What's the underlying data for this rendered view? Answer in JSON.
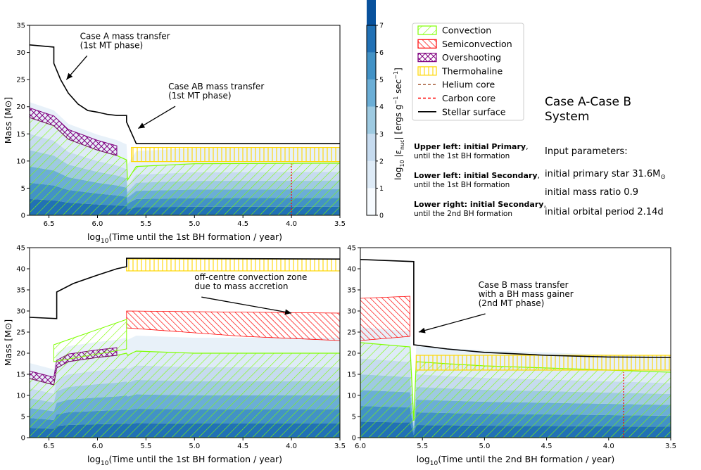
{
  "figure_title": "Case A-Case B System",
  "figure_title_lines": [
    "Case A-Case B",
    "System"
  ],
  "legend": {
    "entries": [
      {
        "label": "Convection",
        "kind": "hatch-convection",
        "color": "#7fff00"
      },
      {
        "label": "Semiconvection",
        "kind": "hatch-semi",
        "color": "#ff0000"
      },
      {
        "label": "Overshooting",
        "kind": "hatch-over",
        "color": "#800080"
      },
      {
        "label": "Thermohaline",
        "kind": "hatch-thermo",
        "color": "#ffd700"
      },
      {
        "label": "Helium core",
        "kind": "dash",
        "color": "#a0522d"
      },
      {
        "label": "Carbon core",
        "kind": "dash",
        "color": "#ff0000"
      },
      {
        "label": "Stellar surface",
        "kind": "line",
        "color": "#000000"
      }
    ]
  },
  "colorbar": {
    "label": "log10 |ε_nuc| [ergs g⁻¹ sec⁻¹]",
    "label_parts": {
      "pre": "log",
      "sub": "10",
      "mid": " |ε",
      "sub2": "nuc",
      "post": "| [ergs g",
      "sup": "−1",
      "post2": " sec",
      "sup2": "−1",
      "end": "]"
    },
    "ticks": [
      "0",
      "1",
      "2",
      "3",
      "4",
      "5",
      "6",
      "7"
    ],
    "colors": [
      "#f7fbff",
      "#deebf7",
      "#c6dbef",
      "#9ecae1",
      "#6baed6",
      "#4292c6",
      "#2171b5",
      "#08519c"
    ]
  },
  "notes": [
    {
      "bold": "Upper left: initial Primary",
      "tail": ",",
      "sub": "until the 1st BH formation"
    },
    {
      "bold": "Lower left: initial Secondary",
      "tail": ",",
      "sub": "until the 1st BH formation"
    },
    {
      "bold": "Lower right: initial Secondary",
      "tail": ",",
      "sub": "until the 2nd BH formation"
    }
  ],
  "input_parameters": {
    "heading": "Input parameters:",
    "primary": "initial primary star 31.6M",
    "primary_unit_sub": "⊙",
    "mass_ratio": "initial mass ratio 0.9",
    "period": "initial orbital period 2.14d"
  },
  "chart_data": [
    {
      "id": "upper-left",
      "type": "area",
      "xlabel": "log10(Time until the 1st BH formation / year)",
      "ylabel": "Mass [M⊙]",
      "xlim": [
        6.7,
        3.5
      ],
      "ylim": [
        0,
        35
      ],
      "xticks": [
        "6.5",
        "6.0",
        "5.5",
        "5.0",
        "4.5",
        "4.0",
        "3.5"
      ],
      "xtick_values": [
        6.5,
        6.0,
        5.5,
        5.0,
        4.5,
        4.0,
        3.5
      ],
      "yticks": [
        "0",
        "5",
        "10",
        "15",
        "20",
        "25",
        "30",
        "35"
      ],
      "ytick_values": [
        0,
        5,
        10,
        15,
        20,
        25,
        30,
        35
      ],
      "surface": {
        "x": [
          6.7,
          6.45,
          6.45,
          6.38,
          6.3,
          6.2,
          6.1,
          6.0,
          5.9,
          5.8,
          5.7,
          5.7,
          5.6,
          3.5
        ],
        "y": [
          31.4,
          31.0,
          28.0,
          25.0,
          22.5,
          20.5,
          19.3,
          19.0,
          18.6,
          18.4,
          18.4,
          17.2,
          13.2,
          13.2
        ]
      },
      "convective_core": {
        "x": [
          6.7,
          6.45,
          6.3,
          6.0,
          5.8,
          5.7,
          5.69,
          5.6,
          5.0,
          3.5
        ],
        "y": [
          18.0,
          16.5,
          14.0,
          12.0,
          11.0,
          10.2,
          6.5,
          9.0,
          9.5,
          9.6
        ]
      },
      "thermohaline": {
        "x0": 5.65,
        "x1": 3.5,
        "y0": 9.9,
        "y1": 12.5
      },
      "carbon_core_x": 4.0,
      "carbon_core_y": [
        0,
        9.5
      ],
      "annotations": [
        {
          "text": "Case A mass transfer",
          "text2": "(1st MT phase)",
          "tx": 6.18,
          "ty": 32.5,
          "ax": 6.32,
          "ay": 25.0
        },
        {
          "text": "Case AB mass transfer",
          "text2": "(1st MT phase)",
          "tx": 5.27,
          "ty": 23.2,
          "ax": 5.58,
          "ay": 16.0
        }
      ]
    },
    {
      "id": "lower-left",
      "type": "area",
      "xlabel": "log10(Time until the 1st BH formation / year)",
      "ylabel": "Mass [M⊙]",
      "xlim": [
        6.7,
        3.5
      ],
      "ylim": [
        0,
        45
      ],
      "xticks": [
        "6.5",
        "6.0",
        "5.5",
        "5.0",
        "4.5",
        "4.0",
        "3.5"
      ],
      "xtick_values": [
        6.5,
        6.0,
        5.5,
        5.0,
        4.5,
        4.0,
        3.5
      ],
      "yticks": [
        "0",
        "5",
        "10",
        "15",
        "20",
        "25",
        "30",
        "35",
        "40",
        "45"
      ],
      "ytick_values": [
        0,
        5,
        10,
        15,
        20,
        25,
        30,
        35,
        40,
        45
      ],
      "surface": {
        "x": [
          6.7,
          6.42,
          6.42,
          6.25,
          6.0,
          5.8,
          5.7,
          5.7,
          3.5
        ],
        "y": [
          28.5,
          28.2,
          34.5,
          36.5,
          38.5,
          40.0,
          40.5,
          42.5,
          42.3
        ]
      },
      "convective_core": {
        "x": [
          6.7,
          6.45,
          6.42,
          6.3,
          6.0,
          5.8,
          5.7,
          5.69,
          5.6,
          5.0,
          4.0,
          3.5
        ],
        "y": [
          14.0,
          12.5,
          16.5,
          18.0,
          19.0,
          19.5,
          20.0,
          19.5,
          20.5,
          20.0,
          20.0,
          20.0
        ]
      },
      "thermohaline": {
        "x0": 5.7,
        "x1": 3.5,
        "y0": 39.5,
        "y1": 42.3
      },
      "annotations": [
        {
          "text": "off-centre convection zone",
          "text2": "due to mass accretion",
          "tx": 5.0,
          "ty": 37.3,
          "ax": 4.0,
          "ay": 29.5
        }
      ]
    },
    {
      "id": "lower-right",
      "type": "area",
      "xlabel": "log10(Time until the 2nd BH formation / year)",
      "ylabel": "",
      "xlim": [
        6.0,
        3.5
      ],
      "ylim": [
        0,
        45
      ],
      "xticks": [
        "6.0",
        "5.5",
        "5.0",
        "4.5",
        "4.0",
        "3.5"
      ],
      "xtick_values": [
        6.0,
        5.5,
        5.0,
        4.5,
        4.0,
        3.5
      ],
      "yticks": [
        "0",
        "5",
        "10",
        "15",
        "20",
        "25",
        "30",
        "35",
        "40",
        "45"
      ],
      "ytick_values": [
        0,
        5,
        10,
        15,
        20,
        25,
        30,
        35,
        40,
        45
      ],
      "surface": {
        "x": [
          6.0,
          5.57,
          5.57,
          5.3,
          5.0,
          4.5,
          4.0,
          3.5
        ],
        "y": [
          42.2,
          41.7,
          22.0,
          21.0,
          20.2,
          19.5,
          19.1,
          19.0
        ]
      },
      "convective_core": {
        "x": [
          6.0,
          5.6,
          5.57,
          5.55,
          5.3,
          5.0,
          4.5,
          4.0,
          3.5
        ],
        "y": [
          22.5,
          21.5,
          4.0,
          18.0,
          17.5,
          17.0,
          16.5,
          16.0,
          15.5
        ]
      },
      "thermohaline": {
        "x0": 5.55,
        "x1": 3.5,
        "y0": 16.0,
        "y1": 19.5
      },
      "carbon_core_x": 3.88,
      "carbon_core_y": [
        0,
        15.5
      ],
      "annotations": [
        {
          "text": "Case B mass transfer",
          "text2": "with a BH mass gainer",
          "text3": "(2nd MT phase)",
          "tx": 5.05,
          "ty": 35.5,
          "ax": 5.53,
          "ay": 25.0
        }
      ]
    }
  ]
}
